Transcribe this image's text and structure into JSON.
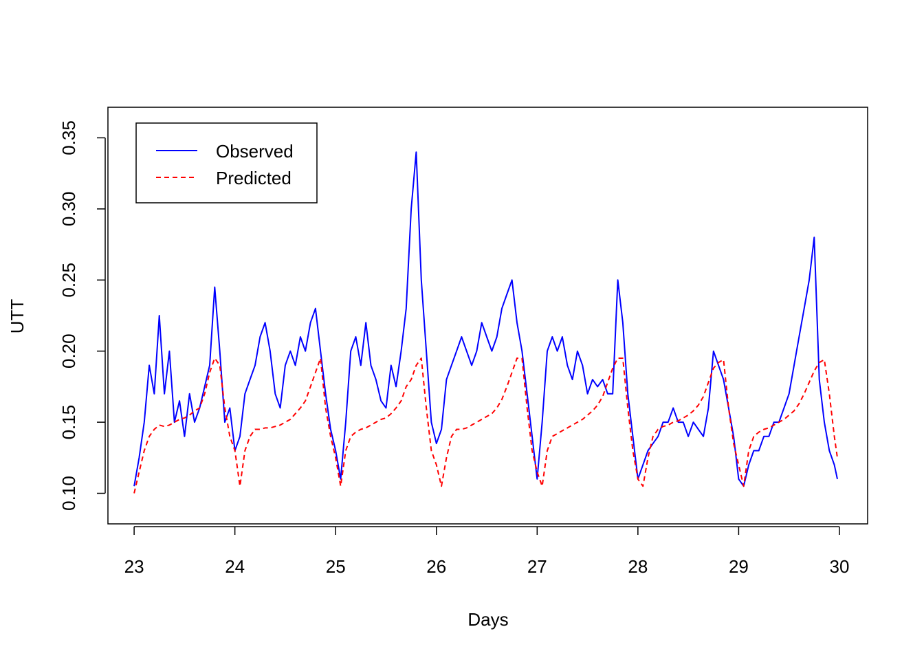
{
  "chart_data": {
    "type": "line",
    "xlabel": "Days",
    "ylabel": "UTT",
    "xlim": [
      22.74,
      30.28
    ],
    "ylim": [
      0.0785,
      0.3715
    ],
    "x_ticks": [
      23,
      24,
      25,
      26,
      27,
      28,
      29,
      30
    ],
    "x_tick_labels": [
      "23",
      "24",
      "25",
      "26",
      "27",
      "28",
      "29",
      "30"
    ],
    "y_ticks": [
      0.1,
      0.15,
      0.2,
      0.25,
      0.3,
      0.35
    ],
    "y_tick_labels": [
      "0.10",
      "0.15",
      "0.20",
      "0.25",
      "0.30",
      "0.35"
    ],
    "grid": false,
    "legend_position": "top-left",
    "series": [
      {
        "name": "Observed",
        "color": "#0000ff",
        "line_style": "solid",
        "x": [
          23.0,
          23.05,
          23.1,
          23.15,
          23.2,
          23.25,
          23.3,
          23.35,
          23.4,
          23.45,
          23.5,
          23.55,
          23.6,
          23.65,
          23.7,
          23.75,
          23.8,
          23.85,
          23.9,
          23.95,
          24.0,
          24.05,
          24.1,
          24.15,
          24.2,
          24.25,
          24.3,
          24.35,
          24.4,
          24.45,
          24.5,
          24.55,
          24.6,
          24.65,
          24.7,
          24.75,
          24.8,
          24.85,
          24.9,
          24.95,
          25.0,
          25.05,
          25.1,
          25.15,
          25.2,
          25.25,
          25.3,
          25.35,
          25.4,
          25.45,
          25.5,
          25.55,
          25.6,
          25.65,
          25.7,
          25.75,
          25.8,
          25.85,
          25.9,
          25.95,
          26.0,
          26.05,
          26.1,
          26.15,
          26.2,
          26.25,
          26.3,
          26.35,
          26.4,
          26.45,
          26.5,
          26.55,
          26.6,
          26.65,
          26.7,
          26.75,
          26.8,
          26.85,
          26.9,
          26.95,
          27.0,
          27.05,
          27.1,
          27.15,
          27.2,
          27.25,
          27.3,
          27.35,
          27.4,
          27.45,
          27.5,
          27.55,
          27.6,
          27.65,
          27.7,
          27.75,
          27.8,
          27.85,
          27.9,
          27.95,
          28.0,
          28.05,
          28.1,
          28.15,
          28.2,
          28.25,
          28.3,
          28.35,
          28.4,
          28.45,
          28.5,
          28.55,
          28.6,
          28.65,
          28.7,
          28.75,
          28.8,
          28.85,
          28.9,
          28.95,
          29.0,
          29.05,
          29.1,
          29.15,
          29.2,
          29.25,
          29.3,
          29.35,
          29.4,
          29.45,
          29.5,
          29.55,
          29.6,
          29.65,
          29.7,
          29.75,
          29.8,
          29.85,
          29.9,
          29.95,
          29.98
        ],
        "y": [
          0.105,
          0.125,
          0.15,
          0.19,
          0.17,
          0.225,
          0.17,
          0.2,
          0.15,
          0.165,
          0.14,
          0.17,
          0.15,
          0.16,
          0.175,
          0.19,
          0.245,
          0.2,
          0.15,
          0.16,
          0.13,
          0.14,
          0.17,
          0.18,
          0.19,
          0.21,
          0.22,
          0.2,
          0.17,
          0.16,
          0.19,
          0.2,
          0.19,
          0.21,
          0.2,
          0.22,
          0.23,
          0.2,
          0.17,
          0.145,
          0.13,
          0.11,
          0.15,
          0.2,
          0.21,
          0.19,
          0.22,
          0.19,
          0.18,
          0.165,
          0.16,
          0.19,
          0.175,
          0.2,
          0.23,
          0.3,
          0.34,
          0.25,
          0.2,
          0.15,
          0.135,
          0.145,
          0.18,
          0.19,
          0.2,
          0.21,
          0.2,
          0.19,
          0.2,
          0.22,
          0.21,
          0.2,
          0.21,
          0.23,
          0.24,
          0.25,
          0.22,
          0.2,
          0.17,
          0.14,
          0.11,
          0.15,
          0.2,
          0.21,
          0.2,
          0.21,
          0.19,
          0.18,
          0.2,
          0.19,
          0.17,
          0.18,
          0.175,
          0.18,
          0.17,
          0.17,
          0.25,
          0.22,
          0.17,
          0.14,
          0.11,
          0.12,
          0.13,
          0.135,
          0.14,
          0.15,
          0.15,
          0.16,
          0.15,
          0.15,
          0.14,
          0.15,
          0.145,
          0.14,
          0.16,
          0.2,
          0.19,
          0.18,
          0.16,
          0.14,
          0.11,
          0.105,
          0.12,
          0.13,
          0.13,
          0.14,
          0.14,
          0.15,
          0.15,
          0.16,
          0.17,
          0.19,
          0.21,
          0.23,
          0.25,
          0.28,
          0.18,
          0.15,
          0.13,
          0.12,
          0.11
        ]
      },
      {
        "name": "Predicted",
        "color": "#ff0000",
        "line_style": "dashed",
        "x": [
          23.0,
          23.05,
          23.1,
          23.15,
          23.2,
          23.25,
          23.3,
          23.35,
          23.4,
          23.45,
          23.5,
          23.55,
          23.6,
          23.65,
          23.7,
          23.75,
          23.8,
          23.85,
          23.9,
          23.95,
          24.0,
          24.05,
          24.1,
          24.15,
          24.2,
          24.25,
          24.3,
          24.35,
          24.4,
          24.45,
          24.5,
          24.55,
          24.6,
          24.65,
          24.7,
          24.75,
          24.8,
          24.85,
          24.9,
          24.95,
          25.0,
          25.05,
          25.1,
          25.15,
          25.2,
          25.25,
          25.3,
          25.35,
          25.4,
          25.45,
          25.5,
          25.55,
          25.6,
          25.65,
          25.7,
          25.75,
          25.8,
          25.85,
          25.9,
          25.95,
          26.0,
          26.05,
          26.1,
          26.15,
          26.2,
          26.25,
          26.3,
          26.35,
          26.4,
          26.45,
          26.5,
          26.55,
          26.6,
          26.65,
          26.7,
          26.75,
          26.8,
          26.85,
          26.9,
          26.95,
          27.0,
          27.05,
          27.1,
          27.15,
          27.2,
          27.25,
          27.3,
          27.35,
          27.4,
          27.45,
          27.5,
          27.55,
          27.6,
          27.65,
          27.7,
          27.75,
          27.8,
          27.85,
          27.9,
          27.95,
          28.0,
          28.05,
          28.1,
          28.15,
          28.2,
          28.25,
          28.3,
          28.35,
          28.4,
          28.45,
          28.5,
          28.55,
          28.6,
          28.65,
          28.7,
          28.75,
          28.8,
          28.85,
          28.9,
          28.95,
          29.0,
          29.05,
          29.1,
          29.15,
          29.2,
          29.25,
          29.3,
          29.35,
          29.4,
          29.45,
          29.5,
          29.55,
          29.6,
          29.65,
          29.7,
          29.75,
          29.8,
          29.85,
          29.9,
          29.95,
          29.98
        ],
        "y": [
          0.1,
          0.115,
          0.13,
          0.14,
          0.145,
          0.148,
          0.147,
          0.148,
          0.15,
          0.152,
          0.153,
          0.155,
          0.158,
          0.16,
          0.17,
          0.185,
          0.195,
          0.19,
          0.16,
          0.14,
          0.13,
          0.105,
          0.13,
          0.14,
          0.145,
          0.145,
          0.146,
          0.146,
          0.147,
          0.148,
          0.15,
          0.152,
          0.156,
          0.16,
          0.165,
          0.175,
          0.185,
          0.195,
          0.16,
          0.14,
          0.125,
          0.105,
          0.13,
          0.14,
          0.143,
          0.145,
          0.146,
          0.148,
          0.15,
          0.152,
          0.153,
          0.156,
          0.16,
          0.165,
          0.175,
          0.18,
          0.19,
          0.195,
          0.16,
          0.13,
          0.12,
          0.105,
          0.125,
          0.14,
          0.145,
          0.145,
          0.146,
          0.148,
          0.15,
          0.152,
          0.154,
          0.156,
          0.16,
          0.166,
          0.175,
          0.185,
          0.195,
          0.195,
          0.16,
          0.13,
          0.115,
          0.105,
          0.13,
          0.14,
          0.142,
          0.144,
          0.146,
          0.148,
          0.15,
          0.152,
          0.155,
          0.158,
          0.162,
          0.168,
          0.178,
          0.188,
          0.195,
          0.195,
          0.16,
          0.13,
          0.11,
          0.105,
          0.125,
          0.14,
          0.145,
          0.147,
          0.148,
          0.15,
          0.151,
          0.153,
          0.155,
          0.158,
          0.162,
          0.168,
          0.178,
          0.188,
          0.192,
          0.194,
          0.16,
          0.135,
          0.12,
          0.105,
          0.13,
          0.14,
          0.143,
          0.145,
          0.146,
          0.148,
          0.15,
          0.152,
          0.155,
          0.158,
          0.163,
          0.17,
          0.178,
          0.186,
          0.192,
          0.194,
          0.17,
          0.14,
          0.125
        ]
      }
    ]
  }
}
